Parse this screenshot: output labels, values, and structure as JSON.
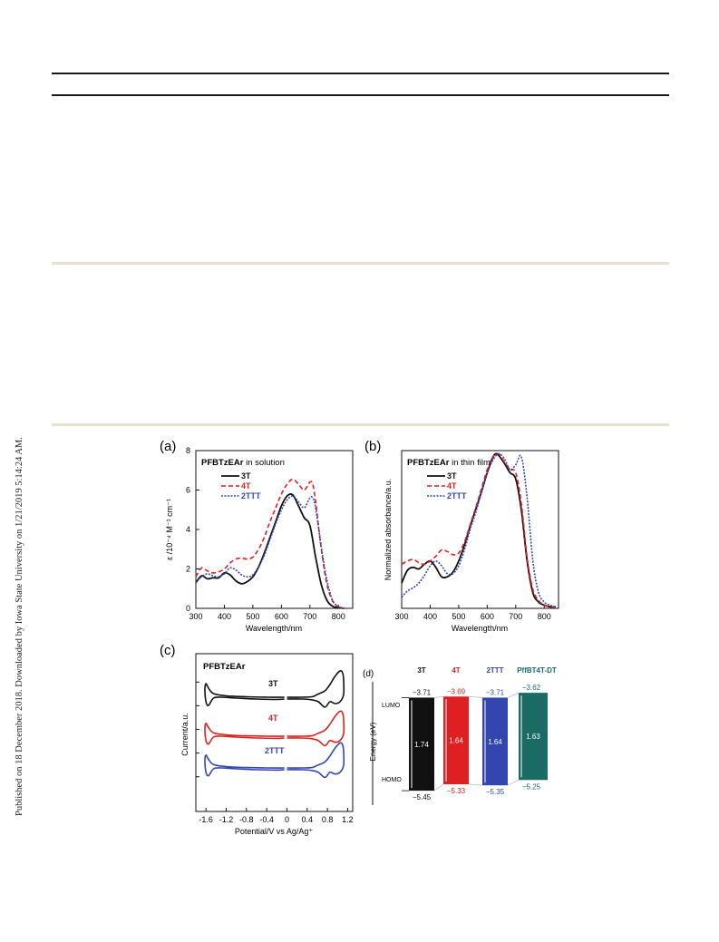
{
  "sidebar": {
    "text": "Published on 18 December 2018. Downloaded by Iowa State University on 1/21/2019 5:14:24 AM."
  },
  "colors": {
    "rule": "#1a1a1a",
    "band": "#e8e1cc",
    "s3T": "#111111",
    "s4T": "#e02020",
    "s2TTT": "#3346b0",
    "sPff": "#1a6b64"
  },
  "chart_data": [
    {
      "panel": "(a)",
      "type": "line",
      "title": "PFBTzEAr in solution",
      "title_bold": "PFBTzEAr",
      "title_rest": " in solution",
      "xlabel": "Wavelength/nm",
      "ylabel": "ε /10⁻⁴ M⁻¹ cm⁻¹",
      "xlim": [
        300,
        850
      ],
      "ylim": [
        0,
        8
      ],
      "xticks": [
        "300",
        "400",
        "500",
        "600",
        "700",
        "800"
      ],
      "yticks": [
        "0",
        "2",
        "4",
        "6",
        "8"
      ],
      "legend": [
        "3T",
        "4T",
        "2TTT"
      ],
      "series": [
        {
          "name": "3T",
          "x": [
            300,
            320,
            340,
            360,
            380,
            400,
            420,
            440,
            460,
            480,
            500,
            520,
            540,
            560,
            580,
            600,
            620,
            640,
            660,
            680,
            700,
            720,
            740,
            760,
            780,
            800,
            820
          ],
          "y": [
            1.3,
            1.65,
            1.5,
            1.55,
            1.55,
            1.8,
            1.7,
            1.4,
            1.25,
            1.35,
            1.6,
            2.1,
            2.8,
            3.6,
            4.4,
            5.2,
            5.7,
            5.75,
            5.2,
            4.6,
            4.2,
            2.6,
            1.2,
            0.4,
            0.1,
            0.03,
            0.0
          ]
        },
        {
          "name": "4T",
          "x": [
            300,
            320,
            340,
            360,
            380,
            400,
            420,
            440,
            460,
            480,
            500,
            520,
            540,
            560,
            580,
            600,
            620,
            640,
            660,
            680,
            700,
            710,
            720,
            740,
            760,
            780,
            800,
            820
          ],
          "y": [
            1.6,
            2.05,
            1.9,
            1.8,
            1.85,
            2.0,
            2.3,
            2.5,
            2.55,
            2.5,
            2.6,
            3.0,
            3.6,
            4.4,
            5.1,
            5.8,
            6.3,
            6.55,
            6.3,
            6.0,
            6.4,
            6.3,
            5.4,
            3.0,
            1.2,
            0.35,
            0.08,
            0.0
          ]
        },
        {
          "name": "2TTT",
          "x": [
            300,
            320,
            340,
            360,
            380,
            400,
            420,
            440,
            460,
            480,
            500,
            520,
            540,
            560,
            580,
            600,
            620,
            640,
            660,
            680,
            700,
            710,
            720,
            740,
            760,
            780,
            800,
            820
          ],
          "y": [
            1.3,
            1.6,
            1.75,
            1.65,
            1.6,
            1.75,
            2.05,
            1.95,
            1.7,
            1.6,
            1.7,
            2.1,
            2.7,
            3.5,
            4.3,
            5.0,
            5.5,
            5.7,
            5.4,
            5.1,
            5.6,
            5.6,
            5.1,
            3.1,
            1.4,
            0.4,
            0.1,
            0.0
          ]
        }
      ]
    },
    {
      "panel": "(b)",
      "type": "line",
      "title": "PFBTzEAr in thin film",
      "title_bold": "PFBTzEAr",
      "title_rest": " in thin film",
      "xlabel": "Wavelength/nm",
      "ylabel": "Normalized absorbance/a.u.",
      "xlim": [
        300,
        850
      ],
      "ylim": [
        0,
        1.0
      ],
      "xticks": [
        "300",
        "400",
        "500",
        "600",
        "700",
        "800"
      ],
      "legend": [
        "3T",
        "4T",
        "2TTT"
      ],
      "series": [
        {
          "name": "3T",
          "x": [
            300,
            320,
            340,
            360,
            380,
            400,
            420,
            440,
            460,
            480,
            500,
            520,
            540,
            560,
            580,
            600,
            620,
            630,
            640,
            660,
            680,
            700,
            720,
            740,
            760,
            780,
            800,
            820,
            840
          ],
          "y": [
            0.16,
            0.24,
            0.26,
            0.25,
            0.28,
            0.3,
            0.26,
            0.2,
            0.2,
            0.23,
            0.3,
            0.4,
            0.52,
            0.63,
            0.74,
            0.86,
            0.96,
            0.98,
            0.97,
            0.92,
            0.86,
            0.82,
            0.62,
            0.3,
            0.1,
            0.04,
            0.02,
            0.01,
            0.01
          ]
        },
        {
          "name": "4T",
          "x": [
            300,
            320,
            340,
            360,
            380,
            400,
            420,
            440,
            460,
            480,
            500,
            520,
            540,
            560,
            580,
            600,
            620,
            640,
            660,
            680,
            700,
            720,
            740,
            760,
            780,
            800,
            820,
            840
          ],
          "y": [
            0.28,
            0.3,
            0.31,
            0.29,
            0.28,
            0.3,
            0.33,
            0.37,
            0.36,
            0.34,
            0.35,
            0.42,
            0.53,
            0.64,
            0.76,
            0.88,
            0.96,
            0.98,
            0.93,
            0.88,
            0.86,
            0.66,
            0.32,
            0.12,
            0.05,
            0.02,
            0.01,
            0.01
          ]
        },
        {
          "name": "2TTT",
          "x": [
            300,
            320,
            340,
            360,
            380,
            400,
            420,
            440,
            460,
            480,
            500,
            520,
            540,
            560,
            580,
            600,
            620,
            640,
            660,
            680,
            700,
            720,
            740,
            760,
            780,
            800,
            820,
            840
          ],
          "y": [
            0.07,
            0.11,
            0.13,
            0.16,
            0.21,
            0.27,
            0.3,
            0.27,
            0.22,
            0.22,
            0.27,
            0.37,
            0.5,
            0.61,
            0.74,
            0.86,
            0.94,
            0.98,
            0.95,
            0.88,
            0.91,
            0.96,
            0.7,
            0.3,
            0.1,
            0.04,
            0.02,
            0.01
          ]
        }
      ]
    },
    {
      "panel": "(c)",
      "type": "line",
      "title": "PFBTzEAr",
      "xlabel": "Potential/V vs Ag/Ag⁺",
      "ylabel": "Current/a.u.",
      "xlim": [
        -1.8,
        1.3
      ],
      "xticks": [
        "-1.6",
        "-1.2",
        "-0.8",
        "-0.4",
        "0",
        "0.4",
        "0.8",
        "1.2"
      ],
      "xtick_values": [
        -1.6,
        -1.2,
        -0.8,
        -0.4,
        0,
        0.4,
        0.8,
        1.2
      ],
      "series_labels": [
        "3T",
        "4T",
        "2TTT"
      ]
    },
    {
      "panel": "(d)",
      "type": "bar",
      "ylabel": "Energy (eV)",
      "lumo_label": "LUMO",
      "homo_label": "HOMO",
      "categories": [
        "3T",
        "4T",
        "2TTT",
        "PffBT4T-DT"
      ],
      "lumo": [
        "−3.71",
        "−3.69",
        "−3.71",
        "−3.62"
      ],
      "homo": [
        "−5.45",
        "−5.33",
        "−5.35",
        "−5.25"
      ],
      "gap": [
        "1.74",
        "1.64",
        "1.64",
        "1.63"
      ],
      "lumo_values": [
        -3.71,
        -3.69,
        -3.71,
        -3.62
      ],
      "homo_values": [
        -5.45,
        -5.33,
        -5.35,
        -5.25
      ]
    }
  ]
}
